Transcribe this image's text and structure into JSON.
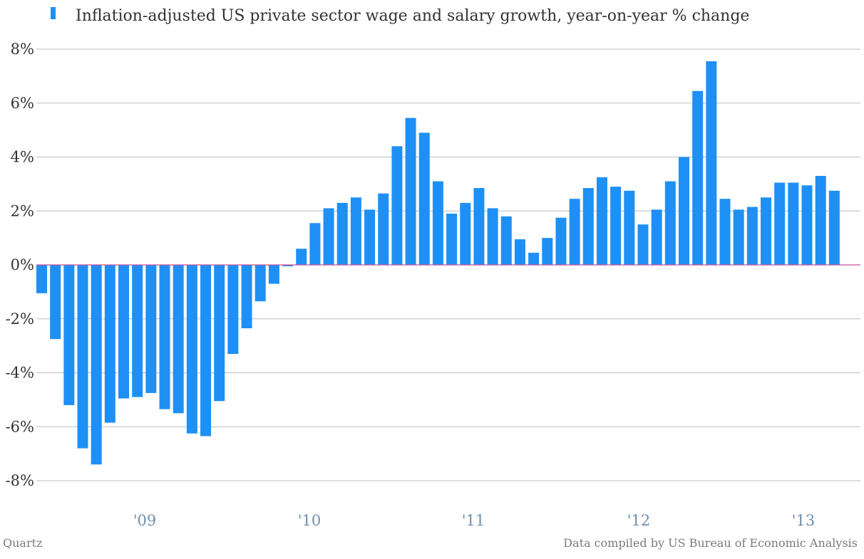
{
  "chart_data": {
    "type": "bar",
    "series": [
      {
        "name": "Inflation-adjusted US private sector wage and salary growth, year-on-year % change",
        "color": "#1e90f5",
        "values": [
          -1.05,
          -2.75,
          -5.2,
          -6.8,
          -7.4,
          -5.85,
          -4.95,
          -4.9,
          -4.75,
          -5.35,
          -5.5,
          -6.25,
          -6.35,
          -5.05,
          -3.3,
          -2.35,
          -1.35,
          -0.7,
          -0.05,
          0.6,
          1.55,
          2.1,
          2.3,
          2.5,
          2.05,
          2.65,
          4.4,
          5.45,
          4.9,
          3.1,
          1.9,
          2.3,
          2.85,
          2.1,
          1.8,
          0.95,
          0.45,
          1.0,
          1.75,
          2.45,
          2.85,
          3.25,
          2.9,
          2.75,
          1.5,
          2.05,
          3.1,
          4.0,
          6.45,
          7.55,
          2.45,
          2.05,
          2.15,
          2.5,
          3.05,
          3.05,
          2.95,
          3.3,
          2.75
        ]
      }
    ],
    "ylim": [
      -8,
      8
    ],
    "yticks": [
      "8%",
      "6%",
      "4%",
      "2%",
      "0%",
      "-2%",
      "-4%",
      "-6%",
      "-8%"
    ],
    "xticks": [
      "'09",
      "'10",
      "'11",
      "'12",
      "'13"
    ],
    "grid": true,
    "legend_position": "top-left"
  },
  "footer": {
    "brand": "Quartz",
    "source": "Data compiled by US Bureau of Economic Analysis"
  }
}
